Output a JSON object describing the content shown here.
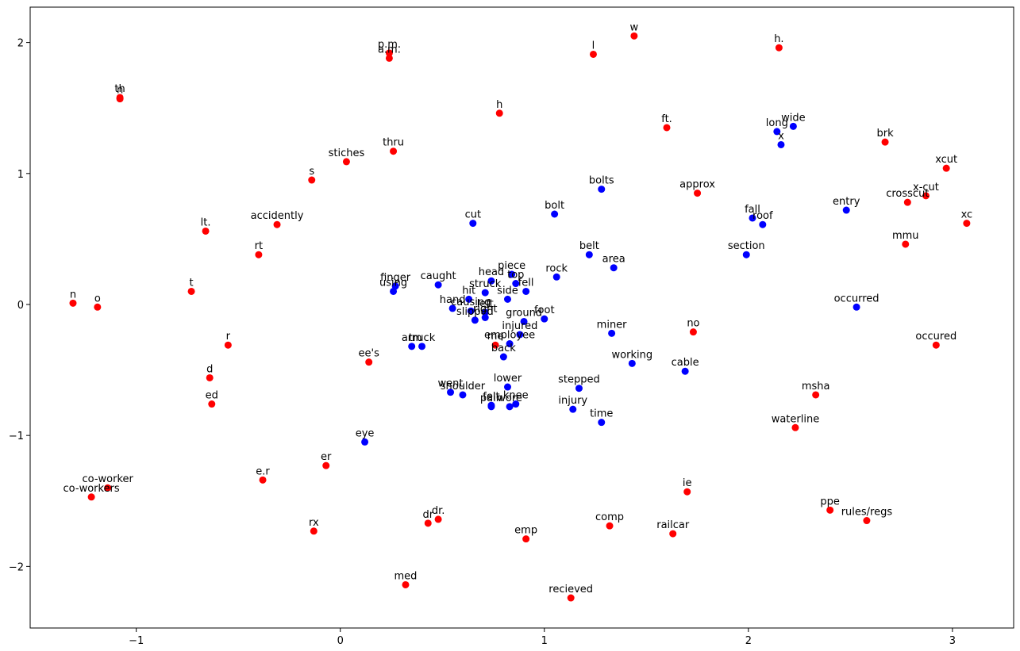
{
  "chart_data": {
    "type": "scatter",
    "title": "",
    "xlabel": "",
    "ylabel": "",
    "xlim": [
      -1.52,
      3.3
    ],
    "ylim": [
      -2.47,
      2.27
    ],
    "x_ticks": [
      {
        "value": -1,
        "label": "−1"
      },
      {
        "value": 0,
        "label": "0"
      },
      {
        "value": 1,
        "label": "1"
      },
      {
        "value": 2,
        "label": "2"
      },
      {
        "value": 3,
        "label": "3"
      }
    ],
    "y_ticks": [
      {
        "value": -2,
        "label": "−2"
      },
      {
        "value": -1,
        "label": "−1"
      },
      {
        "value": 0,
        "label": "0"
      },
      {
        "value": 1,
        "label": "1"
      },
      {
        "value": 2,
        "label": "2"
      }
    ],
    "grid": false,
    "legend": false,
    "series": [
      {
        "color": "#ff0000",
        "points": [
          {
            "label": "w",
            "x": 1.44,
            "y": 2.05
          },
          {
            "label": "p.m.",
            "x": 0.24,
            "y": 1.92
          },
          {
            "label": "a.m.",
            "x": 0.24,
            "y": 1.88
          },
          {
            "label": "l",
            "x": 1.24,
            "y": 1.91
          },
          {
            "label": "h.",
            "x": 2.15,
            "y": 1.96
          },
          {
            "label": "th",
            "x": -1.08,
            "y": 1.58
          },
          {
            "label": "n",
            "x": -1.08,
            "y": 1.57
          },
          {
            "label": "h",
            "x": 0.78,
            "y": 1.46
          },
          {
            "label": "ft.",
            "x": 1.6,
            "y": 1.35
          },
          {
            "label": "brk",
            "x": 2.67,
            "y": 1.24
          },
          {
            "label": "thru",
            "x": 0.26,
            "y": 1.17
          },
          {
            "label": "stiches",
            "x": 0.03,
            "y": 1.09
          },
          {
            "label": "xcut",
            "x": 2.97,
            "y": 1.04
          },
          {
            "label": "s",
            "x": -0.14,
            "y": 0.95
          },
          {
            "label": "approx",
            "x": 1.75,
            "y": 0.85
          },
          {
            "label": "x-cut",
            "x": 2.87,
            "y": 0.83
          },
          {
            "label": "crosscut",
            "x": 2.78,
            "y": 0.78
          },
          {
            "label": "xc",
            "x": 3.07,
            "y": 0.62
          },
          {
            "label": "accidently",
            "x": -0.31,
            "y": 0.61
          },
          {
            "label": "lt.",
            "x": -0.66,
            "y": 0.56
          },
          {
            "label": "mmu",
            "x": 2.77,
            "y": 0.46
          },
          {
            "label": "rt",
            "x": -0.4,
            "y": 0.38
          },
          {
            "label": "t",
            "x": -0.73,
            "y": 0.1
          },
          {
            "label": "n",
            "x": -1.31,
            "y": 0.01
          },
          {
            "label": "o",
            "x": -1.19,
            "y": -0.02
          },
          {
            "label": "no",
            "x": 1.73,
            "y": -0.21
          },
          {
            "label": "r",
            "x": -0.55,
            "y": -0.31
          },
          {
            "label": "occured",
            "x": 2.92,
            "y": -0.31
          },
          {
            "label": "me",
            "x": 0.76,
            "y": -0.31
          },
          {
            "label": "ee's",
            "x": 0.14,
            "y": -0.44
          },
          {
            "label": "d",
            "x": -0.64,
            "y": -0.56
          },
          {
            "label": "msha",
            "x": 2.33,
            "y": -0.69
          },
          {
            "label": "ed",
            "x": -0.63,
            "y": -0.76
          },
          {
            "label": "waterline",
            "x": 2.23,
            "y": -0.94
          },
          {
            "label": "er",
            "x": -0.07,
            "y": -1.23
          },
          {
            "label": "e.r",
            "x": -0.38,
            "y": -1.34
          },
          {
            "label": "co-worker",
            "x": -1.14,
            "y": -1.4
          },
          {
            "label": "co-workers",
            "x": -1.22,
            "y": -1.47
          },
          {
            "label": "ie",
            "x": 1.7,
            "y": -1.43
          },
          {
            "label": "ppe",
            "x": 2.4,
            "y": -1.57
          },
          {
            "label": "rules/regs",
            "x": 2.58,
            "y": -1.65
          },
          {
            "label": "dr",
            "x": 0.43,
            "y": -1.67
          },
          {
            "label": "dr.",
            "x": 0.48,
            "y": -1.64
          },
          {
            "label": "rx",
            "x": -0.13,
            "y": -1.73
          },
          {
            "label": "comp",
            "x": 1.32,
            "y": -1.69
          },
          {
            "label": "railcar",
            "x": 1.63,
            "y": -1.75
          },
          {
            "label": "emp",
            "x": 0.91,
            "y": -1.79
          },
          {
            "label": "med",
            "x": 0.32,
            "y": -2.14
          },
          {
            "label": "recieved",
            "x": 1.13,
            "y": -2.24
          }
        ]
      },
      {
        "color": "#0000ff",
        "points": [
          {
            "label": "long",
            "x": 2.14,
            "y": 1.32
          },
          {
            "label": "wide",
            "x": 2.22,
            "y": 1.36
          },
          {
            "label": "x",
            "x": 2.16,
            "y": 1.22
          },
          {
            "label": "bolts",
            "x": 1.28,
            "y": 0.88
          },
          {
            "label": "bolt",
            "x": 1.05,
            "y": 0.69
          },
          {
            "label": "cut",
            "x": 0.65,
            "y": 0.62
          },
          {
            "label": "fall",
            "x": 2.02,
            "y": 0.66
          },
          {
            "label": "roof",
            "x": 2.07,
            "y": 0.61
          },
          {
            "label": "entry",
            "x": 2.48,
            "y": 0.72
          },
          {
            "label": "belt",
            "x": 1.22,
            "y": 0.38
          },
          {
            "label": "section",
            "x": 1.99,
            "y": 0.38
          },
          {
            "label": "area",
            "x": 1.34,
            "y": 0.28
          },
          {
            "label": "piece",
            "x": 0.84,
            "y": 0.23
          },
          {
            "label": "head",
            "x": 0.74,
            "y": 0.18
          },
          {
            "label": "rock",
            "x": 1.06,
            "y": 0.21
          },
          {
            "label": "top",
            "x": 0.86,
            "y": 0.16
          },
          {
            "label": "finger",
            "x": 0.27,
            "y": 0.14
          },
          {
            "label": "using",
            "x": 0.26,
            "y": 0.1
          },
          {
            "label": "caught",
            "x": 0.48,
            "y": 0.15
          },
          {
            "label": "struck",
            "x": 0.71,
            "y": 0.09
          },
          {
            "label": "fell",
            "x": 0.91,
            "y": 0.1
          },
          {
            "label": "hit",
            "x": 0.63,
            "y": 0.04
          },
          {
            "label": "side",
            "x": 0.82,
            "y": 0.04
          },
          {
            "label": "hand",
            "x": 0.55,
            "y": -0.03
          },
          {
            "label": "causing",
            "x": 0.64,
            "y": -0.05
          },
          {
            "label": "left",
            "x": 0.71,
            "y": -0.06
          },
          {
            "label": "slipped",
            "x": 0.66,
            "y": -0.12
          },
          {
            "label": "right",
            "x": 0.71,
            "y": -0.1
          },
          {
            "label": "ground",
            "x": 0.9,
            "y": -0.13
          },
          {
            "label": "foot",
            "x": 1.0,
            "y": -0.11
          },
          {
            "label": "occurred",
            "x": 2.53,
            "y": -0.02
          },
          {
            "label": "injured",
            "x": 0.88,
            "y": -0.23
          },
          {
            "label": "employee",
            "x": 0.83,
            "y": -0.3
          },
          {
            "label": "miner",
            "x": 1.33,
            "y": -0.22
          },
          {
            "label": "arm",
            "x": 0.35,
            "y": -0.32
          },
          {
            "label": "truck",
            "x": 0.4,
            "y": -0.32
          },
          {
            "label": "back",
            "x": 0.8,
            "y": -0.4
          },
          {
            "label": "working",
            "x": 1.43,
            "y": -0.45
          },
          {
            "label": "cable",
            "x": 1.69,
            "y": -0.51
          },
          {
            "label": "lower",
            "x": 0.82,
            "y": -0.63
          },
          {
            "label": "stepped",
            "x": 1.17,
            "y": -0.64
          },
          {
            "label": "went",
            "x": 0.54,
            "y": -0.67
          },
          {
            "label": "shoulder",
            "x": 0.6,
            "y": -0.69
          },
          {
            "label": "felt",
            "x": 0.74,
            "y": -0.77
          },
          {
            "label": "pain",
            "x": 0.74,
            "y": -0.78
          },
          {
            "label": "knee",
            "x": 0.86,
            "y": -0.76
          },
          {
            "label": "wore",
            "x": 0.83,
            "y": -0.78
          },
          {
            "label": "injury",
            "x": 1.14,
            "y": -0.8
          },
          {
            "label": "time",
            "x": 1.28,
            "y": -0.9
          },
          {
            "label": "eye",
            "x": 0.12,
            "y": -1.05
          }
        ]
      }
    ]
  }
}
